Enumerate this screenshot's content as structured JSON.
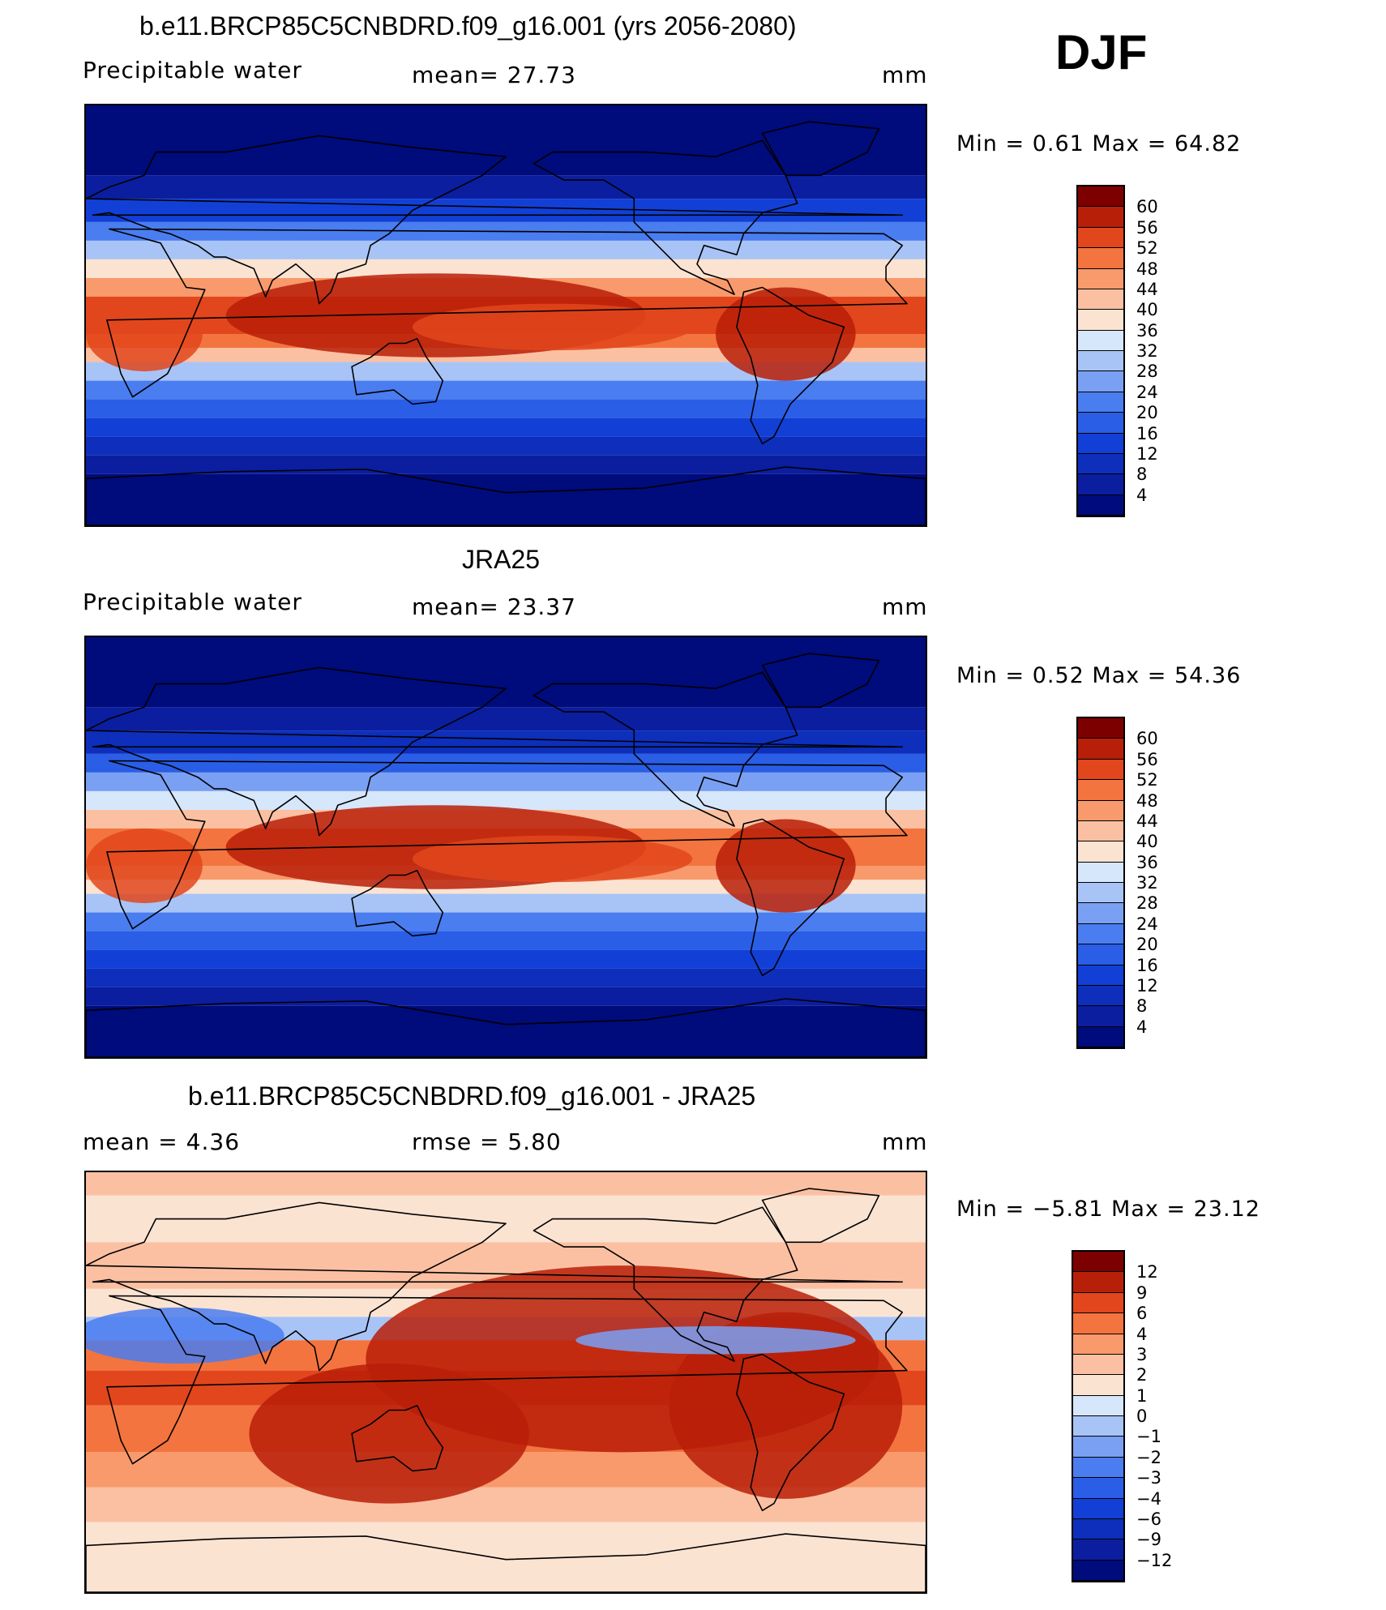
{
  "season": "DJF",
  "panels": [
    {
      "title": "b.e11.BRCP85C5CNBDRD.f09_g16.001 (yrs 2056-2080)",
      "variable": "Precipitable water",
      "stat_text": "mean=   27.73",
      "units": "mm",
      "min_max": "Min =    0.61  Max =   64.82",
      "kind": "model",
      "colorbar_labels": [
        "60",
        "56",
        "52",
        "48",
        "44",
        "40",
        "36",
        "32",
        "28",
        "24",
        "20",
        "16",
        "12",
        "8",
        "4"
      ]
    },
    {
      "title": "JRA25",
      "variable": "Precipitable water",
      "stat_text": "mean=   23.37",
      "units": "mm",
      "min_max": "Min =    0.52  Max =   54.36",
      "kind": "obs",
      "colorbar_labels": [
        "60",
        "56",
        "52",
        "48",
        "44",
        "40",
        "36",
        "32",
        "28",
        "24",
        "20",
        "16",
        "12",
        "8",
        "4"
      ]
    },
    {
      "title": "b.e11.BRCP85C5CNBDRD.f09_g16.001 - JRA25",
      "variable": "mean =     4.36",
      "stat_text": "rmse =     5.80",
      "units": "mm",
      "min_max": "Min =   −5.81  Max =   23.12",
      "kind": "diff",
      "colorbar_labels": [
        "12",
        "9",
        "6",
        "4",
        "3",
        "2",
        "1",
        "0",
        "−1",
        "−2",
        "−3",
        "−4",
        "−6",
        "−9",
        "−12"
      ]
    }
  ],
  "colors": {
    "abs_scale": [
      "#000b7c",
      "#0a1e9f",
      "#0d2fbc",
      "#1240d6",
      "#2a5ee6",
      "#4a7df0",
      "#7aa0f3",
      "#a8c4f6",
      "#d6e6fb",
      "#fbe3d2",
      "#fbc0a2",
      "#f89a6c",
      "#f3743f",
      "#e2461c",
      "#b81f08",
      "#7c0000"
    ],
    "diff_scale": [
      "#000b7c",
      "#0a1e9f",
      "#0d2fbc",
      "#1240d6",
      "#2a5ee6",
      "#4a7df0",
      "#7aa0f3",
      "#a8c4f6",
      "#d6e6fb",
      "#fbe3d2",
      "#fbc0a2",
      "#f89a6c",
      "#f3743f",
      "#e2461c",
      "#b81f08",
      "#7c0000"
    ]
  }
}
